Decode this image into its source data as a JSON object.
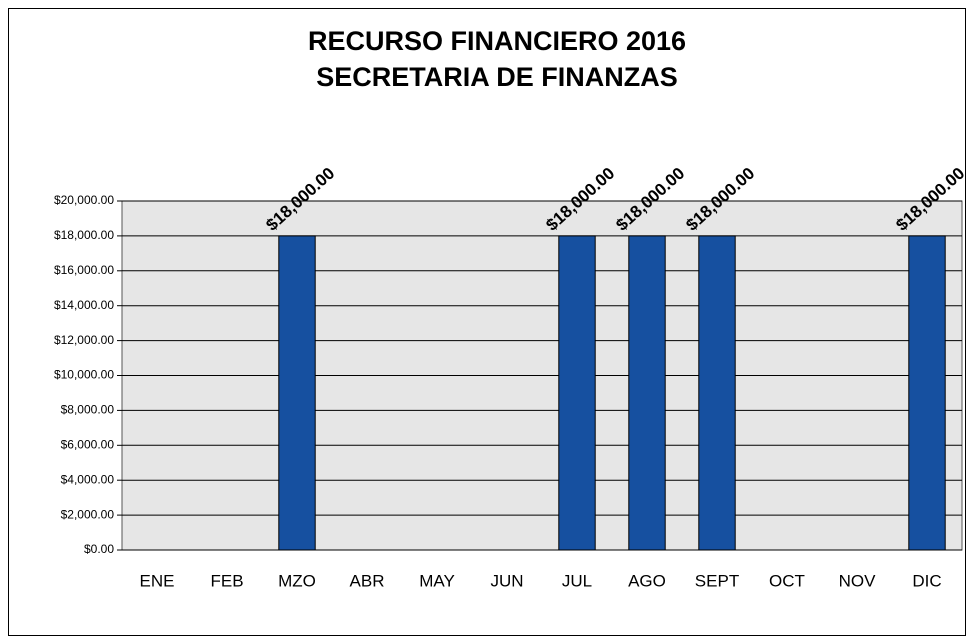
{
  "chart_data": {
    "type": "bar",
    "title": "RECURSO FINANCIERO 2016",
    "subtitle": "SECRETARIA DE FINANZAS",
    "categories": [
      "ENE",
      "FEB",
      "MZO",
      "ABR",
      "MAY",
      "JUN",
      "JUL",
      "AGO",
      "SEPT",
      "OCT",
      "NOV",
      "DIC"
    ],
    "values": [
      null,
      null,
      18000,
      null,
      null,
      null,
      18000,
      18000,
      18000,
      null,
      null,
      18000
    ],
    "value_labels": [
      null,
      null,
      "$18,000.00",
      null,
      null,
      null,
      "$18,000.00",
      "$18,000.00",
      "$18,000.00",
      null,
      null,
      "$18,000.00"
    ],
    "color": "#1650a0",
    "ylim": [
      0,
      20000
    ],
    "yticks": [
      {
        "value": 0,
        "label": "$0.00"
      },
      {
        "value": 2000,
        "label": "$2,000.00"
      },
      {
        "value": 4000,
        "label": "$4,000.00"
      },
      {
        "value": 6000,
        "label": "$6,000.00"
      },
      {
        "value": 8000,
        "label": "$8,000.00"
      },
      {
        "value": 10000,
        "label": "$10,000.00"
      },
      {
        "value": 12000,
        "label": "$12,000.00"
      },
      {
        "value": 14000,
        "label": "$14,000.00"
      },
      {
        "value": 16000,
        "label": "$16,000.00"
      },
      {
        "value": 18000,
        "label": "$18,000.00"
      },
      {
        "value": 20000,
        "label": "$20,000.00"
      }
    ],
    "grid": true
  }
}
